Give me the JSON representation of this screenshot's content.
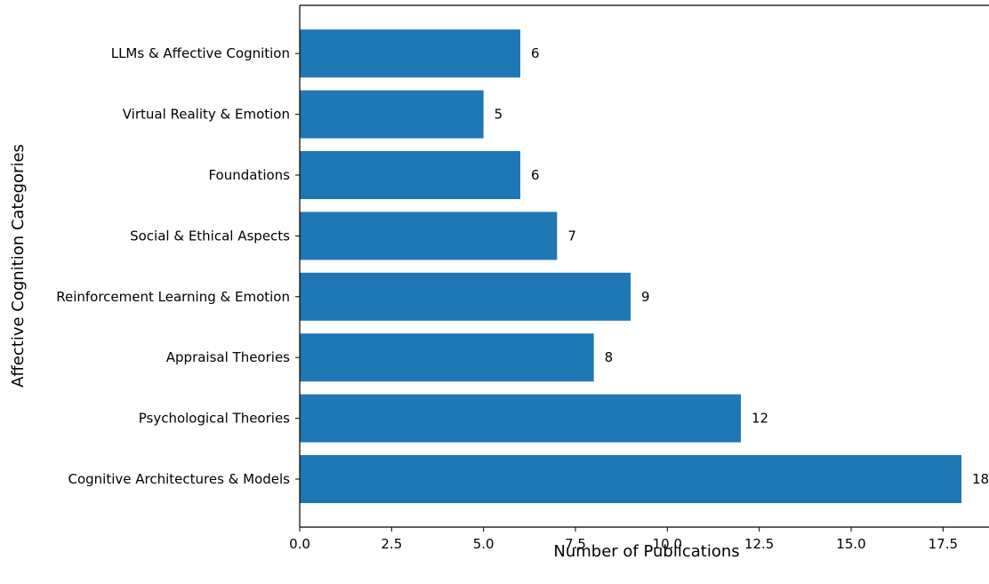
{
  "chart_data": {
    "type": "bar",
    "orientation": "horizontal",
    "categories": [
      "Cognitive Architectures & Models",
      "Psychological Theories",
      "Appraisal Theories",
      "Reinforcement Learning & Emotion",
      "Social & Ethical Aspects",
      "Foundations",
      "Virtual Reality & Emotion",
      "LLMs & Affective Cognition"
    ],
    "values": [
      18,
      12,
      8,
      9,
      7,
      6,
      5,
      6
    ],
    "value_labels": [
      "18",
      "12",
      "8",
      "9",
      "7",
      "6",
      "5",
      "6"
    ],
    "xticks": [
      0,
      2.5,
      5,
      7.5,
      10,
      12.5,
      15,
      17.5
    ],
    "xtick_labels": [
      "0.0",
      "2.5",
      "5.0",
      "7.5",
      "10.0",
      "12.5",
      "15.0",
      "17.5"
    ],
    "xlim": [
      0,
      18.9
    ],
    "xlabel": "Number of Publications",
    "ylabel": "Affective Cognition Categories",
    "title": "",
    "grid": false,
    "legend": "none",
    "bar_color": "#1f77b4"
  }
}
